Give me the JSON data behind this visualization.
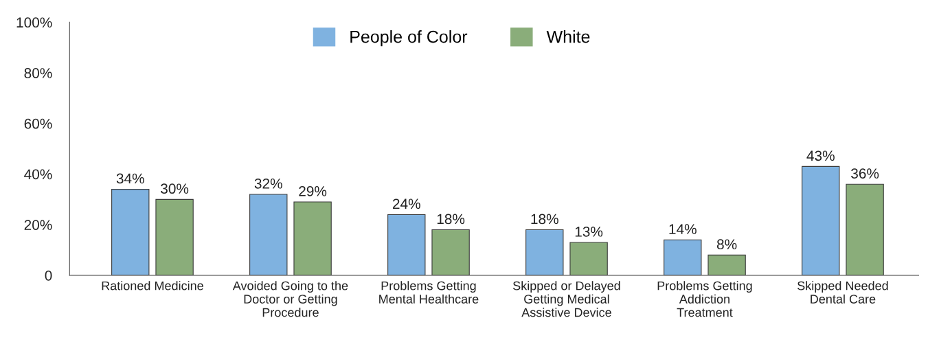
{
  "chart_data": {
    "type": "bar",
    "categories": [
      "Rationed Medicine",
      "Avoided Going to the\nDoctor or Getting\nProcedure",
      "Problems Getting\nMental Healthcare",
      "Skipped or Delayed\nGetting Medical\nAssistive Device",
      "Problems Getting\nAddiction\nTreatment",
      "Skipped Needed\nDental Care"
    ],
    "series": [
      {
        "name": "People of Color",
        "color": "#7fb2e0",
        "values": [
          34,
          32,
          24,
          18,
          14,
          43
        ],
        "value_labels": [
          "34%",
          "32%",
          "24%",
          "18%",
          "14%",
          "43%"
        ]
      },
      {
        "name": "White",
        "color": "#8aad7a",
        "values": [
          30,
          29,
          18,
          13,
          8,
          36
        ],
        "value_labels": [
          "30%",
          "29%",
          "18%",
          "13%",
          "8%",
          "36%"
        ]
      }
    ],
    "ylim": [
      0,
      100
    ],
    "yticks": [
      0,
      {
        "value": 20,
        "label": "20%"
      },
      {
        "value": 40,
        "label": "40%"
      },
      {
        "value": 60,
        "label": "60%"
      },
      {
        "value": 80,
        "label": "80%"
      },
      {
        "value": 100,
        "label": "100%"
      }
    ],
    "legend": "top",
    "grid": false
  }
}
